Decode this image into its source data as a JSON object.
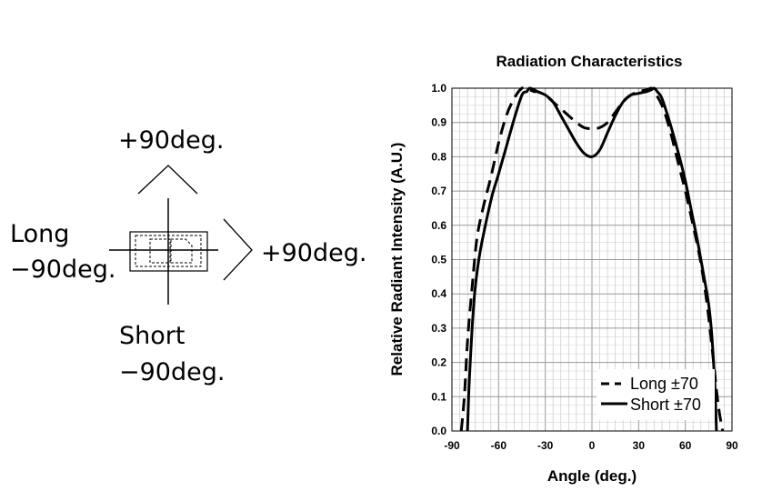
{
  "diagram": {
    "top_label": "+90deg.",
    "right_label": "+90deg.",
    "left_label_line1": "Long",
    "left_label_line2": "−90deg.",
    "bottom_label_line1": "Short",
    "bottom_label_line2": "−90deg."
  },
  "chart_data": {
    "type": "line",
    "title": "Radiation Characteristics",
    "xlabel": "Angle (deg.)",
    "ylabel": "Relative Radiant Intensity (A.U.)",
    "xlim": [
      -90,
      90
    ],
    "ylim": [
      0,
      1.0
    ],
    "x_ticks": [
      -90,
      -60,
      -30,
      0,
      30,
      60,
      90
    ],
    "x_tick_labels": [
      "-90",
      "-60",
      "-30",
      "0",
      "30",
      "60",
      "90"
    ],
    "y_ticks": [
      0,
      0.1,
      0.2,
      0.3,
      0.4,
      0.5,
      0.6,
      0.7,
      0.8,
      0.9,
      1.0
    ],
    "y_tick_labels": [
      "0.0",
      "0.1",
      "0.2",
      "0.3",
      "0.4",
      "0.5",
      "0.6",
      "0.7",
      "0.8",
      "0.9",
      "1.0"
    ],
    "grid": true,
    "legend_position": "bottom-right",
    "series": [
      {
        "name": "Long ±70",
        "style": "dashed",
        "x": [
          -84,
          -82,
          -80,
          -77,
          -74,
          -70,
          -65,
          -60,
          -55,
          -50,
          -45,
          -40,
          -37,
          -35,
          -30,
          -25,
          -20,
          -15,
          -10,
          -5,
          0,
          5,
          10,
          15,
          20,
          25,
          30,
          35,
          38,
          40,
          45,
          50,
          55,
          60,
          65,
          70,
          74,
          77,
          80,
          82,
          84
        ],
        "y": [
          0.0,
          0.1,
          0.26,
          0.42,
          0.56,
          0.65,
          0.74,
          0.84,
          0.92,
          0.97,
          1.0,
          0.995,
          0.99,
          0.99,
          0.98,
          0.96,
          0.94,
          0.92,
          0.9,
          0.885,
          0.882,
          0.885,
          0.9,
          0.93,
          0.96,
          0.98,
          0.99,
          0.995,
          1.0,
          0.99,
          0.95,
          0.88,
          0.79,
          0.7,
          0.6,
          0.49,
          0.37,
          0.25,
          0.12,
          0.05,
          0.0
        ]
      },
      {
        "name": "Short ±70",
        "style": "solid",
        "x": [
          -80,
          -79,
          -77,
          -75,
          -72,
          -68,
          -64,
          -60,
          -55,
          -50,
          -45,
          -42,
          -40,
          -37,
          -35,
          -30,
          -25,
          -20,
          -15,
          -10,
          -5,
          0,
          5,
          10,
          15,
          20,
          25,
          30,
          35,
          38,
          40,
          42,
          45,
          50,
          55,
          60,
          64,
          68,
          72,
          75,
          77,
          79,
          80
        ],
        "y": [
          0.0,
          0.13,
          0.3,
          0.42,
          0.52,
          0.61,
          0.69,
          0.75,
          0.83,
          0.91,
          0.98,
          0.99,
          1.0,
          0.995,
          0.99,
          0.98,
          0.96,
          0.92,
          0.88,
          0.84,
          0.81,
          0.8,
          0.82,
          0.87,
          0.92,
          0.96,
          0.98,
          0.985,
          0.99,
          0.995,
          1.0,
          0.99,
          0.97,
          0.9,
          0.82,
          0.73,
          0.64,
          0.55,
          0.45,
          0.37,
          0.28,
          0.13,
          0.0
        ]
      }
    ]
  }
}
